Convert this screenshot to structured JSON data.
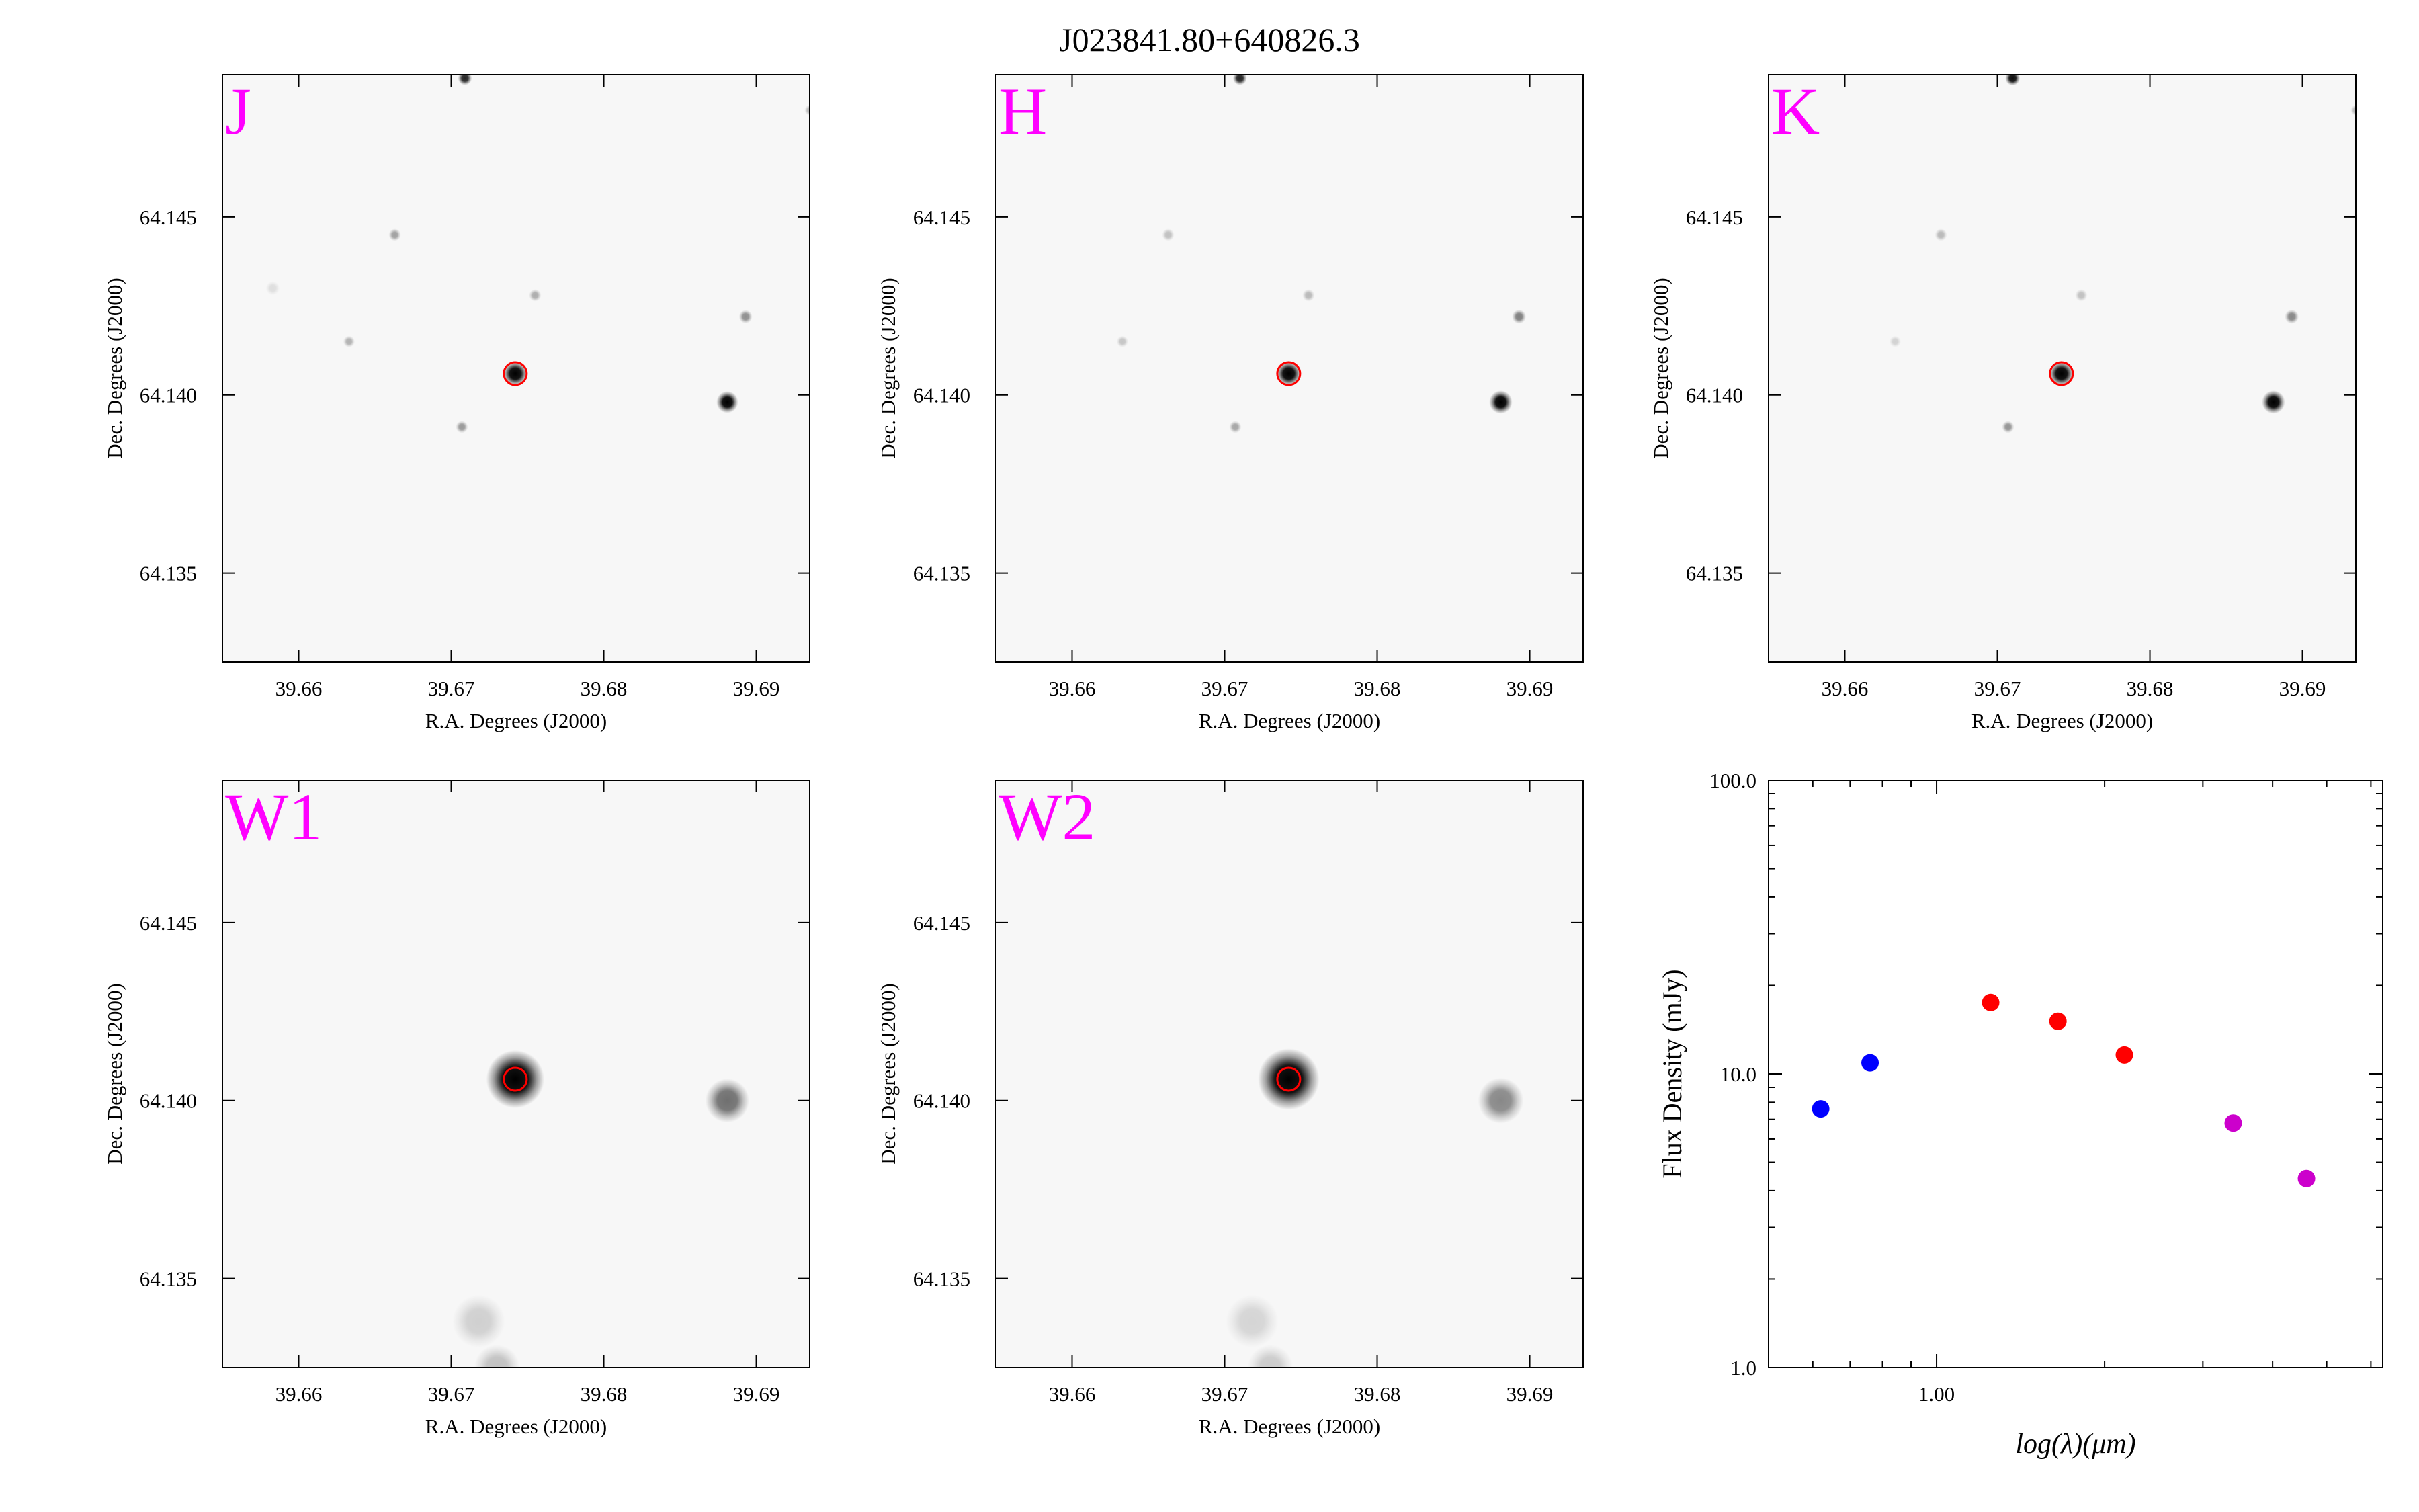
{
  "figure": {
    "title": "J023841.80+640826.3"
  },
  "image_axes": {
    "xlabel": "R.A. Degrees (J2000)",
    "ylabel": "Dec. Degrees (J2000)",
    "xlim": [
      39.655,
      39.6935
    ],
    "ylim": [
      64.1325,
      64.149
    ],
    "xticks": [
      "39.66",
      "39.67",
      "39.68",
      "39.69"
    ],
    "xtick_values": [
      39.66,
      39.67,
      39.68,
      39.69
    ],
    "yticks": [
      "64.135",
      "64.140",
      "64.145"
    ],
    "ytick_values": [
      64.135,
      64.14,
      64.145
    ]
  },
  "panels": [
    {
      "band": "J",
      "sources": [
        {
          "ra": 39.6742,
          "dec": 64.1406,
          "flux": 1.0,
          "sigma": 0.00072
        },
        {
          "ra": 39.6881,
          "dec": 64.1398,
          "flux": 1.0,
          "sigma": 0.00062
        },
        {
          "ra": 39.6709,
          "dec": 64.1489,
          "flux": 0.85,
          "sigma": 0.0004
        },
        {
          "ra": 39.6663,
          "dec": 64.1445,
          "flux": 0.35,
          "sigma": 0.00035
        },
        {
          "ra": 39.6755,
          "dec": 64.1428,
          "flux": 0.3,
          "sigma": 0.00035
        },
        {
          "ra": 39.6893,
          "dec": 64.1422,
          "flux": 0.42,
          "sigma": 0.00038
        },
        {
          "ra": 39.6633,
          "dec": 64.1415,
          "flux": 0.28,
          "sigma": 0.00033
        },
        {
          "ra": 39.6707,
          "dec": 64.1391,
          "flux": 0.38,
          "sigma": 0.00035
        },
        {
          "ra": 39.6935,
          "dec": 64.148,
          "flux": 0.25,
          "sigma": 0.0003
        },
        {
          "ra": 39.6583,
          "dec": 64.143,
          "flux": 0.1,
          "sigma": 0.0004
        }
      ]
    },
    {
      "band": "H",
      "sources": [
        {
          "ra": 39.6742,
          "dec": 64.1406,
          "flux": 1.0,
          "sigma": 0.00072
        },
        {
          "ra": 39.6881,
          "dec": 64.1398,
          "flux": 1.0,
          "sigma": 0.00066
        },
        {
          "ra": 39.671,
          "dec": 64.1489,
          "flux": 0.85,
          "sigma": 0.0004
        },
        {
          "ra": 39.6663,
          "dec": 64.1445,
          "flux": 0.22,
          "sigma": 0.00035
        },
        {
          "ra": 39.6755,
          "dec": 64.1428,
          "flux": 0.25,
          "sigma": 0.00035
        },
        {
          "ra": 39.6893,
          "dec": 64.1422,
          "flux": 0.48,
          "sigma": 0.0004
        },
        {
          "ra": 39.6633,
          "dec": 64.1415,
          "flux": 0.2,
          "sigma": 0.00033
        },
        {
          "ra": 39.6707,
          "dec": 64.1391,
          "flux": 0.33,
          "sigma": 0.00035
        }
      ]
    },
    {
      "band": "K",
      "sources": [
        {
          "ra": 39.6742,
          "dec": 64.1406,
          "flux": 1.0,
          "sigma": 0.00072
        },
        {
          "ra": 39.6881,
          "dec": 64.1398,
          "flux": 1.0,
          "sigma": 0.00066
        },
        {
          "ra": 39.671,
          "dec": 64.1489,
          "flux": 0.95,
          "sigma": 0.00042
        },
        {
          "ra": 39.6663,
          "dec": 64.1445,
          "flux": 0.25,
          "sigma": 0.00035
        },
        {
          "ra": 39.6755,
          "dec": 64.1428,
          "flux": 0.22,
          "sigma": 0.00035
        },
        {
          "ra": 39.6893,
          "dec": 64.1422,
          "flux": 0.45,
          "sigma": 0.0004
        },
        {
          "ra": 39.6633,
          "dec": 64.1415,
          "flux": 0.15,
          "sigma": 0.00033
        },
        {
          "ra": 39.6707,
          "dec": 64.1391,
          "flux": 0.4,
          "sigma": 0.00035
        },
        {
          "ra": 39.6935,
          "dec": 64.148,
          "flux": 0.25,
          "sigma": 0.0003
        }
      ]
    },
    {
      "band": "W1",
      "sources": [
        {
          "ra": 39.6742,
          "dec": 64.1406,
          "flux": 1.0,
          "sigma": 0.00165
        },
        {
          "ra": 39.6881,
          "dec": 64.14,
          "flux": 0.55,
          "sigma": 0.00125
        },
        {
          "ra": 39.6718,
          "dec": 64.1338,
          "flux": 0.16,
          "sigma": 0.0015
        },
        {
          "ra": 39.673,
          "dec": 64.1325,
          "flux": 0.22,
          "sigma": 0.0013
        }
      ]
    },
    {
      "band": "W2",
      "sources": [
        {
          "ra": 39.6742,
          "dec": 64.1406,
          "flux": 1.0,
          "sigma": 0.00175
        },
        {
          "ra": 39.6881,
          "dec": 64.14,
          "flux": 0.45,
          "sigma": 0.0013
        },
        {
          "ra": 39.6718,
          "dec": 64.1338,
          "flux": 0.14,
          "sigma": 0.0015
        },
        {
          "ra": 39.673,
          "dec": 64.1325,
          "flux": 0.18,
          "sigma": 0.0013
        }
      ]
    }
  ],
  "target_aperture": {
    "ra": 39.6742,
    "dec": 64.1406,
    "radius_deg": 0.00075
  },
  "colors": {
    "band_label": "#ff00ff",
    "aperture": "#ff0000",
    "frame": "#000000"
  },
  "chart_data": {
    "type": "scatter",
    "xlabel": "log(λ)(μm)",
    "ylabel": "Flux Density (mJy)",
    "xscale": "log",
    "yscale": "log",
    "xlim": [
      0.5,
      6.3
    ],
    "ylim": [
      1.0,
      100.0
    ],
    "xticks": [
      "1.00"
    ],
    "xtick_values": [
      1.0
    ],
    "yticks": [
      "1.0",
      "10.0",
      "100.0"
    ],
    "ytick_values": [
      1.0,
      10.0,
      100.0
    ],
    "series": [
      {
        "color": "#0000ff",
        "x": [
          0.62,
          0.76
        ],
        "y": [
          7.6,
          10.9
        ]
      },
      {
        "color": "#ff0000",
        "x": [
          1.25,
          1.65,
          2.17
        ],
        "y": [
          17.5,
          15.1,
          11.6
        ]
      },
      {
        "color": "#cc00cc",
        "x": [
          3.4,
          4.6
        ],
        "y": [
          6.8,
          4.4
        ]
      }
    ]
  }
}
